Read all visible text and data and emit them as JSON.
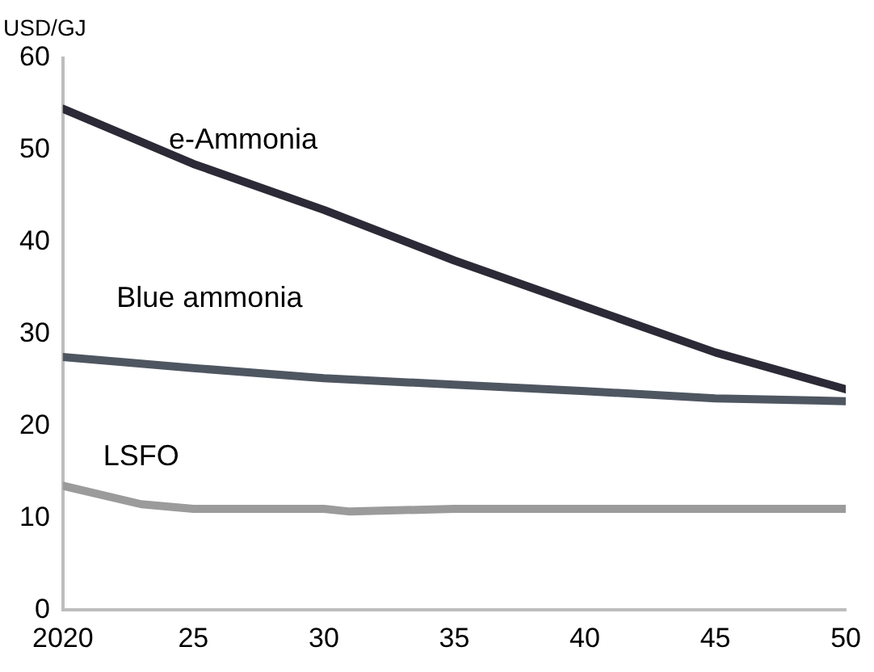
{
  "chart_data": {
    "type": "line",
    "ylabel": "USD/GJ",
    "x": [
      2020,
      2025,
      2030,
      2035,
      2040,
      2045,
      2050
    ],
    "series": [
      {
        "name": "e-Ammonia",
        "color": "#2b2a36",
        "values": [
          54.5,
          48.5,
          43.5,
          38,
          33,
          28,
          24
        ]
      },
      {
        "name": "Blue ammonia",
        "color": "#4e5661",
        "values": [
          27.5,
          26.3,
          25.2,
          24.5,
          23.8,
          23,
          22.7
        ]
      },
      {
        "name": "LSFO",
        "color": "#9b9b9b",
        "x": [
          2020,
          2023,
          2025,
          2030,
          2031,
          2035,
          2040,
          2045,
          2050
        ],
        "values": [
          13.5,
          11.5,
          11,
          11,
          10.7,
          11,
          11,
          11,
          11
        ]
      }
    ],
    "xlim": [
      2020,
      2050
    ],
    "xticks": [
      2020,
      {
        "value": 2025,
        "label": "25"
      },
      {
        "value": 2030,
        "label": "30"
      },
      {
        "value": 2035,
        "label": "35"
      },
      {
        "value": 2040,
        "label": "40"
      },
      {
        "value": 2045,
        "label": "45"
      },
      {
        "value": 2050,
        "label": "50"
      }
    ],
    "ylim": [
      0,
      60
    ],
    "yticks": [
      0,
      10,
      20,
      30,
      40,
      50,
      60
    ],
    "grid": false,
    "legend": false,
    "marker": "none",
    "line_style": "solid"
  }
}
